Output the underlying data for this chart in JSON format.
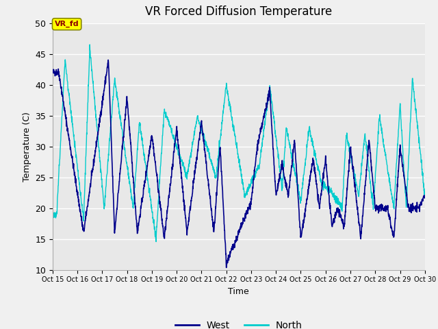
{
  "title": "VR Forced Diffusion Temperature",
  "xlabel": "Time",
  "ylabel": "Temperature (C)",
  "ylim": [
    10,
    50
  ],
  "xlim": [
    0,
    360
  ],
  "fig_facecolor": "#f0f0f0",
  "plot_bg_color": "#e8e8e8",
  "west_color": "#00008B",
  "north_color": "#00CCCC",
  "legend_label_west": "West",
  "legend_label_north": "North",
  "annotation_text": "VR_fd",
  "annotation_bg": "#FFFF00",
  "annotation_fg": "#8B0000",
  "tick_labels": [
    "Oct 15",
    "Oct 16",
    "Oct 17",
    "Oct 18",
    "Oct 19",
    "Oct 20",
    "Oct 21",
    "Oct 22",
    "Oct 23",
    "Oct 24",
    "Oct 25",
    "Oct 26",
    "Oct 27",
    "Oct 28",
    "Oct 29",
    "Oct 30"
  ],
  "tick_positions": [
    0,
    24,
    48,
    72,
    96,
    120,
    144,
    168,
    192,
    216,
    240,
    264,
    288,
    312,
    336,
    360
  ],
  "yticks": [
    10,
    15,
    20,
    25,
    30,
    35,
    40,
    45,
    50
  ],
  "west_peaks": [
    [
      6,
      42
    ],
    [
      30,
      16
    ],
    [
      54,
      44
    ],
    [
      60,
      16
    ],
    [
      72,
      38
    ],
    [
      82,
      16
    ],
    [
      96,
      32
    ],
    [
      108,
      15
    ],
    [
      120,
      33
    ],
    [
      130,
      16
    ],
    [
      144,
      34
    ],
    [
      156,
      16
    ],
    [
      162,
      30
    ],
    [
      168,
      11
    ],
    [
      192,
      21
    ],
    [
      198,
      30
    ],
    [
      210,
      39
    ],
    [
      216,
      22
    ],
    [
      222,
      27
    ],
    [
      228,
      22
    ],
    [
      234,
      31
    ],
    [
      240,
      15
    ],
    [
      252,
      28
    ],
    [
      258,
      20
    ],
    [
      264,
      28
    ],
    [
      270,
      17
    ],
    [
      276,
      20
    ],
    [
      282,
      17
    ],
    [
      288,
      30
    ],
    [
      298,
      15
    ],
    [
      306,
      31
    ],
    [
      312,
      20
    ],
    [
      318,
      20
    ],
    [
      324,
      20
    ],
    [
      330,
      15
    ],
    [
      336,
      30
    ],
    [
      344,
      20
    ],
    [
      354,
      20
    ],
    [
      360,
      22
    ]
  ],
  "north_peaks": [
    [
      4,
      19
    ],
    [
      12,
      44
    ],
    [
      30,
      18
    ],
    [
      36,
      46
    ],
    [
      50,
      20
    ],
    [
      60,
      41
    ],
    [
      78,
      20
    ],
    [
      84,
      34
    ],
    [
      100,
      15
    ],
    [
      108,
      36
    ],
    [
      130,
      25
    ],
    [
      140,
      35
    ],
    [
      158,
      25
    ],
    [
      168,
      40
    ],
    [
      186,
      22
    ],
    [
      200,
      27
    ],
    [
      210,
      40
    ],
    [
      222,
      23
    ],
    [
      226,
      33
    ],
    [
      240,
      21
    ],
    [
      248,
      33
    ],
    [
      260,
      24
    ],
    [
      268,
      23
    ],
    [
      280,
      20
    ],
    [
      284,
      32
    ],
    [
      296,
      22
    ],
    [
      302,
      32
    ],
    [
      310,
      20
    ],
    [
      316,
      35
    ],
    [
      330,
      20
    ],
    [
      336,
      37
    ],
    [
      342,
      20
    ],
    [
      348,
      41
    ],
    [
      360,
      22
    ]
  ]
}
